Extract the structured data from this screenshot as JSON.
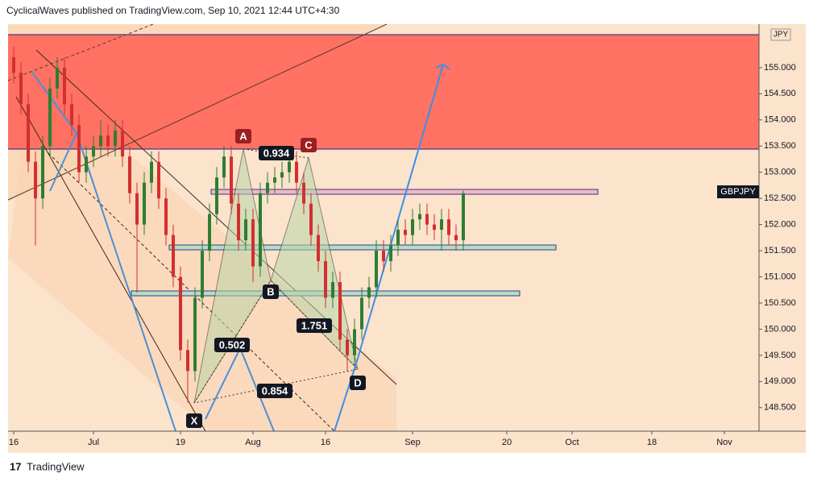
{
  "chart_data": {
    "type": "candlestick",
    "title": "CyclicalWaves published on TradingView.com, Sep 10, 2021 12:44 UTC+4:30",
    "symbol": "GBPJPY",
    "currency": "JPY",
    "footer": "TradingView",
    "up_color": "#2e7d32",
    "down_color": "#d32f2f",
    "x": [
      0,
      1,
      2,
      3,
      4,
      5,
      6,
      7,
      8,
      9,
      10,
      11,
      12,
      13,
      14,
      15,
      16,
      17,
      18,
      19,
      20,
      21,
      22,
      23,
      24,
      25,
      26,
      27,
      28,
      29,
      30,
      31,
      32,
      33,
      34,
      35,
      36,
      37,
      38,
      39,
      40,
      41,
      42,
      43,
      44,
      45,
      46,
      47,
      48,
      49,
      50,
      51,
      52,
      53,
      54,
      55,
      56,
      57,
      58,
      59,
      60,
      61,
      62
    ],
    "open": [
      155.2,
      154.9,
      154.3,
      153.2,
      152.5,
      153.5,
      154.6,
      155.0,
      154.3,
      153.9,
      153.0,
      153.3,
      153.5,
      153.7,
      153.5,
      153.8,
      153.3,
      152.6,
      152.0,
      152.8,
      153.2,
      152.5,
      151.8,
      151.0,
      149.6,
      149.2,
      150.6,
      151.5,
      152.2,
      152.9,
      153.3,
      152.4,
      151.7,
      152.1,
      151.2,
      152.6,
      152.8,
      152.9,
      153.0,
      153.2,
      152.8,
      152.4,
      151.8,
      151.3,
      150.6,
      150.9,
      149.8,
      149.5,
      150.0,
      150.6,
      150.8,
      151.5,
      151.3,
      151.6,
      151.9,
      151.8,
      152.1,
      152.2,
      152.0,
      151.9,
      152.1,
      151.8,
      151.7
    ],
    "high": [
      155.4,
      155.1,
      154.5,
      153.4,
      153.7,
      154.8,
      155.2,
      155.2,
      154.5,
      154.1,
      153.5,
      153.7,
      154.0,
      153.9,
      154.0,
      154.0,
      153.5,
      152.8,
      153.0,
      153.4,
      153.4,
      152.7,
      152.0,
      151.2,
      149.8,
      150.8,
      151.7,
      152.4,
      153.1,
      153.5,
      153.5,
      152.6,
      152.3,
      152.3,
      152.8,
      153.0,
      153.1,
      153.2,
      153.3,
      153.4,
      153.0,
      152.6,
      152.0,
      151.5,
      151.1,
      151.1,
      150.0,
      150.2,
      150.8,
      151.0,
      151.7,
      151.7,
      151.8,
      152.1,
      152.1,
      152.3,
      152.4,
      152.4,
      152.2,
      152.3,
      152.3,
      152.0,
      152.65
    ],
    "low": [
      154.7,
      154.1,
      153.0,
      151.6,
      152.3,
      153.3,
      154.4,
      154.1,
      153.7,
      152.8,
      152.8,
      153.1,
      153.3,
      153.3,
      153.3,
      153.1,
      152.4,
      150.7,
      151.8,
      152.6,
      152.3,
      151.6,
      150.8,
      149.4,
      148.6,
      149.0,
      150.4,
      151.3,
      152.0,
      152.7,
      152.2,
      151.5,
      151.5,
      150.9,
      151.0,
      152.4,
      152.6,
      152.7,
      152.8,
      152.6,
      152.2,
      151.6,
      151.1,
      150.4,
      150.4,
      149.6,
      149.2,
      149.3,
      149.8,
      150.4,
      150.6,
      151.1,
      151.1,
      151.4,
      151.6,
      151.6,
      151.9,
      151.8,
      151.7,
      151.5,
      151.6,
      151.5,
      151.5
    ],
    "close": [
      154.9,
      154.3,
      153.2,
      152.5,
      153.5,
      154.6,
      155.0,
      154.3,
      153.9,
      153.0,
      153.3,
      153.5,
      153.7,
      153.5,
      153.8,
      153.3,
      152.6,
      152.0,
      152.8,
      153.2,
      152.5,
      151.8,
      151.0,
      149.6,
      149.2,
      150.6,
      151.5,
      152.2,
      152.9,
      153.3,
      152.4,
      151.7,
      152.1,
      151.2,
      152.6,
      152.8,
      152.9,
      153.0,
      153.2,
      152.8,
      152.4,
      151.8,
      151.3,
      150.6,
      150.9,
      149.8,
      149.5,
      150.0,
      150.6,
      150.8,
      151.5,
      151.3,
      151.6,
      151.9,
      151.8,
      152.1,
      152.2,
      152.0,
      151.9,
      152.1,
      151.8,
      151.7,
      152.6
    ],
    "xlim": [
      -0.78,
      102.78
    ],
    "xticks": [
      {
        "value": 0,
        "label": "16"
      },
      {
        "value": 11,
        "label": "Jul"
      },
      {
        "value": 23,
        "label": "19"
      },
      {
        "value": 33,
        "label": "Aug"
      },
      {
        "value": 43,
        "label": "16"
      },
      {
        "value": 55,
        "label": "Sep"
      },
      {
        "value": 68,
        "label": "20"
      },
      {
        "value": 77,
        "label": "Oct"
      },
      {
        "value": 88,
        "label": "18"
      },
      {
        "value": 98,
        "label": "Nov"
      }
    ],
    "ylim": [
      148.05,
      155.83
    ],
    "yticks": [
      {
        "value": 148.5,
        "label": "148.500"
      },
      {
        "value": 149,
        "label": "149.000"
      },
      {
        "value": 149.5,
        "label": "149.500"
      },
      {
        "value": 150,
        "label": "150.000"
      },
      {
        "value": 150.5,
        "label": "150.500"
      },
      {
        "value": 151,
        "label": "151.000"
      },
      {
        "value": 151.5,
        "label": "151.500"
      },
      {
        "value": 152,
        "label": "152.000"
      },
      {
        "value": 152.5,
        "label": "152.500"
      },
      {
        "value": 153,
        "label": "153.000"
      },
      {
        "value": 153.5,
        "label": "153.500"
      },
      {
        "value": 154,
        "label": "154.000"
      },
      {
        "value": 154.5,
        "label": "154.500"
      },
      {
        "value": 155,
        "label": "155.000"
      }
    ],
    "annotations": [
      {
        "label": "A"
      },
      {
        "label": "B"
      },
      {
        "label": "C"
      },
      {
        "label": "D"
      },
      {
        "label": "X"
      },
      {
        "label": "0.934"
      },
      {
        "label": "1.751"
      },
      {
        "label": "0.502"
      },
      {
        "label": "0.854"
      }
    ]
  }
}
